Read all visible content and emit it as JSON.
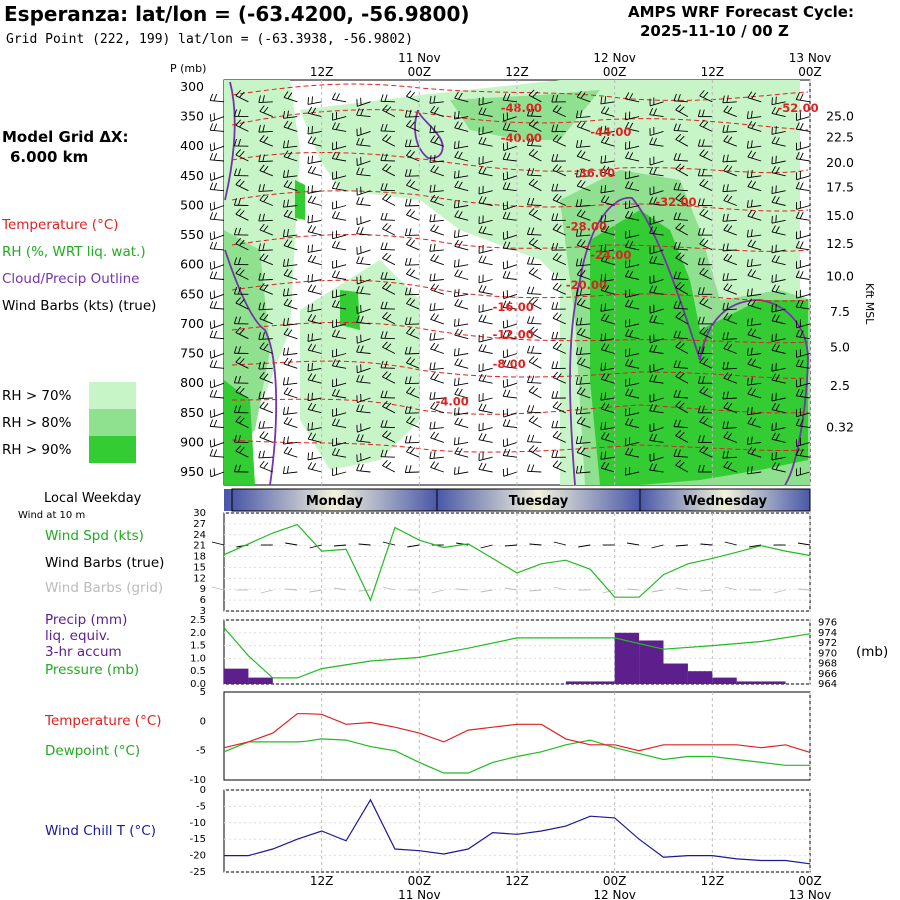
{
  "header": {
    "title": "Esperanza:  lat/lon = (-63.4200, -56.9800)",
    "grid_point": "Grid Point (222, 199) lat/lon = (-63.3938, -56.9802)",
    "cycle_line1": "AMPS WRF Forecast Cycle:",
    "cycle_line2": "2025-11-10 / 00  Z",
    "model_grid_line1": "Model Grid ΔX:",
    "model_grid_line2": "6.000 km"
  },
  "colors": {
    "temperature": "#dd2222",
    "rh": "#22bb22",
    "cloud": "#7733aa",
    "dewpoint": "#22bb22",
    "windchill": "#1a1a99",
    "precip": "#5c1f8c",
    "rh70": "#c8f5c8",
    "rh80": "#8fe08f",
    "rh90": "#33cc33"
  },
  "legend": {
    "temperature": "Temperature (°C)",
    "rh": "RH (%, WRT liq. wat.)",
    "cloud": "Cloud/Precip Outline",
    "wind": "Wind Barbs (kts) (true)",
    "rh70": "RH > 70%",
    "rh80": "RH > 80%",
    "rh90": "RH > 90%"
  },
  "time_axis": {
    "top_ticks": [
      "12Z",
      "00Z",
      "12Z",
      "00Z",
      "12Z",
      "00Z"
    ],
    "top_dates": [
      "11 Nov",
      "12 Nov",
      "13 Nov"
    ],
    "days": [
      "Monday",
      "Tuesday",
      "Wednesday"
    ],
    "local_weekday": "Local Weekday",
    "wind_10m": "Wind at 10 m"
  },
  "chart_data": [
    {
      "type": "heatmap",
      "title": "Esperanza:  lat/lon = (-63.4200, -56.9800)",
      "ylabel": "P (mb)",
      "y2label": "Kft MSL",
      "pressure_ticks": [
        300,
        350,
        400,
        450,
        500,
        550,
        600,
        650,
        700,
        750,
        800,
        850,
        900,
        950
      ],
      "kft_ticks": [
        "25.0",
        "22.5",
        "20.0",
        "17.5",
        "15.0",
        "12.5",
        "10.0",
        "7.5",
        "5.0",
        "2.5",
        "0.32"
      ],
      "kft_pressure": [
        350,
        385,
        428,
        470,
        518,
        565,
        620,
        680,
        740,
        805,
        875,
        985
      ],
      "temperature_labels": [
        {
          "text": "-48.00",
          "hour": 34,
          "p": 342
        },
        {
          "text": "-40.00",
          "hour": 34,
          "p": 393
        },
        {
          "text": "-44.00",
          "hour": 45,
          "p": 383
        },
        {
          "text": "-52.00",
          "hour": 68,
          "p": 342
        },
        {
          "text": "-36.00",
          "hour": 43,
          "p": 452
        },
        {
          "text": "-32.00",
          "hour": 53,
          "p": 501
        },
        {
          "text": "-28.00",
          "hour": 42,
          "p": 542
        },
        {
          "text": "-24.00",
          "hour": 45,
          "p": 590
        },
        {
          "text": "-20.00",
          "hour": 42,
          "p": 641
        },
        {
          "text": "-16.00",
          "hour": 33,
          "p": 678
        },
        {
          "text": "-12.00",
          "hour": 33,
          "p": 725
        },
        {
          "text": "-8.00",
          "hour": 33,
          "p": 774
        },
        {
          "text": "-4.00",
          "hour": 26,
          "p": 838
        }
      ]
    },
    {
      "type": "line",
      "title": "Wind Spd (kts)",
      "ylabel": "Wind Spd (kts)",
      "legend": [
        "Wind Spd (kts)",
        "Wind Barbs (true)",
        "Wind Barbs (grid)"
      ],
      "yticks": [
        3,
        6,
        9,
        12,
        15,
        18,
        21,
        24,
        27,
        30
      ],
      "ylim": [
        3,
        30
      ],
      "x_hours": [
        0,
        3,
        6,
        9,
        12,
        15,
        18,
        21,
        24,
        27,
        30,
        33,
        36,
        39,
        42,
        45,
        48,
        51,
        54,
        57,
        60,
        63,
        66,
        69,
        72
      ],
      "values": [
        18.5,
        21.5,
        24.5,
        26.8,
        19.5,
        20,
        6,
        26,
        22.5,
        20.5,
        21.5,
        17.5,
        13.5,
        16,
        17,
        14.5,
        6.8,
        6.8,
        13,
        16,
        17.5,
        19.2,
        21,
        19.5,
        18.3
      ]
    },
    {
      "type": "bar",
      "title": "Precip (mm) / Pressure (mb)",
      "ylabel": "Precip (mm)",
      "y2label": "(mb)",
      "legend": [
        "Precip (mm)",
        "liq. equiv.",
        "3-hr accum",
        "Pressure (mb)"
      ],
      "yticks": [
        "0.0",
        "0.5",
        "1.0",
        "1.5",
        "2.0",
        "2.5"
      ],
      "ylim": [
        0,
        2.5
      ],
      "y2ticks": [
        964,
        966,
        968,
        970,
        972,
        974,
        976
      ],
      "y2lim": [
        964,
        976.5
      ],
      "precip_x_hours": [
        1.5,
        4.5,
        43.5,
        46.5,
        49.5,
        52.5,
        55.5,
        58.5,
        61.5,
        64.5,
        67.5
      ],
      "precip_values": [
        0.6,
        0.25,
        0.1,
        0.1,
        2.0,
        1.7,
        0.8,
        0.5,
        0.25,
        0.1,
        0.1
      ],
      "pressure_x_hours": [
        0,
        3,
        6,
        9,
        12,
        18,
        24,
        30,
        36,
        42,
        48,
        54,
        60,
        66,
        72
      ],
      "pressure_values": [
        975,
        969.5,
        965.2,
        965.2,
        967,
        968.5,
        969.2,
        971,
        973,
        973,
        973,
        970.8,
        971.5,
        972.3,
        973.8
      ]
    },
    {
      "type": "line",
      "title": "Temperature / Dewpoint",
      "legend": [
        "Temperature (°C)",
        "Dewpoint (°C)"
      ],
      "yticks": [
        5,
        0,
        -5,
        -10
      ],
      "ylim": [
        -10,
        5
      ],
      "x_hours": [
        0,
        3,
        6,
        9,
        10,
        12,
        15,
        18,
        21,
        24,
        27,
        30,
        33,
        36,
        39,
        42,
        45,
        48,
        51,
        54,
        57,
        60,
        63,
        66,
        69,
        72
      ],
      "series": [
        {
          "name": "Temperature (°C)",
          "values": [
            -4.5,
            -3.5,
            -2,
            1.3,
            1.3,
            1.2,
            -0.5,
            -0.2,
            -1,
            -2,
            -3.5,
            -1.5,
            -1,
            -0.5,
            -0.5,
            -3,
            -4,
            -4,
            -5,
            -4,
            -4,
            -4,
            -4,
            -4.5,
            -4,
            -5.3
          ]
        },
        {
          "name": "Dewpoint (°C)",
          "values": [
            -5.2,
            -3.5,
            -3.5,
            -3.5,
            -3.4,
            -3,
            -3.2,
            -4.3,
            -5,
            -7,
            -8.8,
            -8.8,
            -7,
            -6,
            -5.2,
            -4,
            -3.2,
            -4.5,
            -5.5,
            -6.5,
            -6,
            -6,
            -6.5,
            -7,
            -7.5,
            -7.5
          ]
        }
      ]
    },
    {
      "type": "line",
      "title": "Wind Chill T (°C)",
      "ylabel": "Wind Chill T (°C)",
      "yticks": [
        0,
        -5,
        -10,
        -15,
        -20,
        -25
      ],
      "ylim": [
        -25,
        0
      ],
      "x_hours": [
        0,
        3,
        6,
        9,
        12,
        15,
        18,
        21,
        24,
        27,
        30,
        33,
        36,
        39,
        42,
        45,
        48,
        51,
        54,
        57,
        60,
        63,
        66,
        69,
        72
      ],
      "values": [
        -20,
        -20,
        -18,
        -15,
        -12.5,
        -15.5,
        -3,
        -18,
        -18.5,
        -19.5,
        -18,
        -13,
        -13.5,
        -12.5,
        -11,
        -8,
        -8.5,
        -15,
        -20.5,
        -20,
        -20,
        -21,
        -21.5,
        -21.5,
        -22.5
      ]
    }
  ]
}
